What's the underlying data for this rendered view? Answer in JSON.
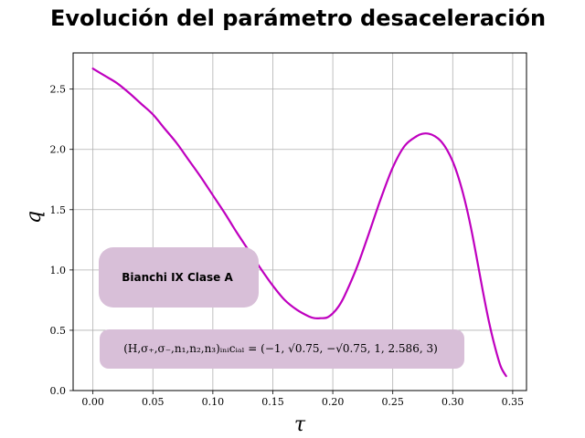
{
  "chart_data": {
    "type": "line",
    "title": "Evolución del parámetro desaceleración",
    "xlabel": "τ",
    "ylabel": "q",
    "xlim": [
      -0.0165,
      0.3615
    ],
    "ylim": [
      0.0,
      2.8
    ],
    "xticks": [
      "0.00",
      "0.05",
      "0.10",
      "0.15",
      "0.20",
      "0.25",
      "0.30",
      "0.35"
    ],
    "yticks": [
      "0.0",
      "0.5",
      "1.0",
      "1.5",
      "2.0",
      "2.5"
    ],
    "grid": true,
    "series": [
      {
        "color": "#bf00bf",
        "x": [
          0.0,
          0.01,
          0.02,
          0.03,
          0.04,
          0.05,
          0.06,
          0.07,
          0.08,
          0.09,
          0.1,
          0.11,
          0.12,
          0.13,
          0.14,
          0.15,
          0.16,
          0.17,
          0.18,
          0.185,
          0.19,
          0.195,
          0.2,
          0.205,
          0.21,
          0.22,
          0.23,
          0.24,
          0.25,
          0.26,
          0.27,
          0.275,
          0.28,
          0.285,
          0.29,
          0.295,
          0.3,
          0.305,
          0.31,
          0.315,
          0.32,
          0.325,
          0.33,
          0.335,
          0.34,
          0.3445
        ],
        "y": [
          2.67,
          2.61,
          2.55,
          2.47,
          2.38,
          2.29,
          2.17,
          2.05,
          1.91,
          1.77,
          1.62,
          1.47,
          1.31,
          1.16,
          1.01,
          0.87,
          0.75,
          0.67,
          0.615,
          0.6,
          0.6,
          0.605,
          0.64,
          0.7,
          0.79,
          1.02,
          1.3,
          1.59,
          1.85,
          2.03,
          2.11,
          2.13,
          2.13,
          2.11,
          2.07,
          2.0,
          1.9,
          1.76,
          1.58,
          1.36,
          1.1,
          0.83,
          0.58,
          0.37,
          0.2,
          0.12
        ]
      }
    ],
    "annotations": [
      {
        "text": "Bianchi IX Clase A",
        "box_color": "#d8bfd8"
      },
      {
        "text": "(H,σ₊,σ₋,n₁,n₂,n₃)ᵢₙᵢcᵢₐₗ = (−1, √0.75, −√0.75, 1, 2.586, 3)",
        "box_color": "#d8bfd8"
      }
    ]
  }
}
